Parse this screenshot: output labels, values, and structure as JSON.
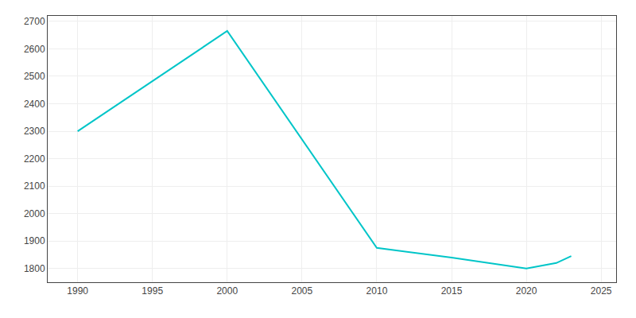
{
  "chart_data": {
    "type": "line",
    "x": [
      1990,
      2000,
      2010,
      2015,
      2020,
      2022,
      2023
    ],
    "values": [
      2300,
      2665,
      1875,
      1840,
      1800,
      1820,
      1845
    ],
    "color": "#00C5C8",
    "xlim": [
      1988,
      2026
    ],
    "ylim": [
      1750,
      2720
    ],
    "xticks": [
      1990,
      1995,
      2000,
      2005,
      2010,
      2015,
      2020,
      2025
    ],
    "yticks": [
      1800,
      1900,
      2000,
      2100,
      2200,
      2300,
      2400,
      2500,
      2600,
      2700
    ],
    "grid": true
  }
}
